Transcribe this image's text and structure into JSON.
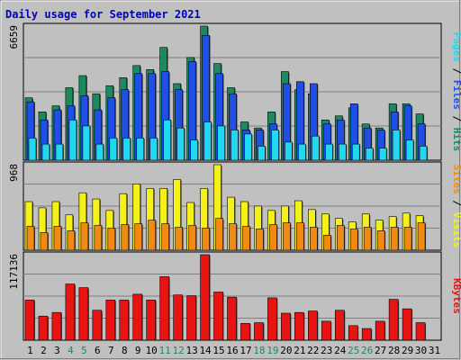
{
  "chart_data": {
    "type": "bar",
    "title": "Daily usage for September 2021",
    "colors": {
      "background": "#c0c0c0",
      "panel": "#c0c0c0",
      "hits": "#1d8a5e",
      "files": "#1f4fe6",
      "pages": "#22d8f0",
      "visits": "#f4f01a",
      "sites": "#f08a14",
      "kbytes": "#e81414",
      "weekend_label": "#1d8a5e",
      "weekday_label": "#000000",
      "title": "#0000c0"
    },
    "days": [
      "1",
      "2",
      "3",
      "4",
      "5",
      "6",
      "7",
      "8",
      "9",
      "10",
      "11",
      "12",
      "13",
      "14",
      "15",
      "16",
      "17",
      "18",
      "19",
      "20",
      "21",
      "22",
      "23",
      "24",
      "25",
      "26",
      "27",
      "28",
      "29",
      "30",
      "31"
    ],
    "weekend_days": [
      "4",
      "5",
      "11",
      "12",
      "18",
      "19",
      "25",
      "26"
    ],
    "panels": [
      {
        "name": "hits-files-pages",
        "max_label": "6659",
        "ymax": 6659,
        "legend": [
          {
            "text": "Pages",
            "color": "#22d8f0"
          },
          {
            "text": " / ",
            "color": "#000000"
          },
          {
            "text": "Files",
            "color": "#1f4fe6"
          },
          {
            "text": " / ",
            "color": "#000000"
          },
          {
            "text": "Hits",
            "color": "#1d8a5e"
          }
        ],
        "series": [
          {
            "name": "Hits",
            "color": "#1d8a5e",
            "values": [
              3100,
              2400,
              2700,
              3600,
              4200,
              3300,
              3700,
              4100,
              4700,
              4500,
              5600,
              3800,
              5100,
              6659,
              4800,
              3600,
              1900,
              1600,
              2400,
              4400,
              3500,
              3300,
              2000,
              2200,
              2600,
              1800,
              1600,
              2800,
              2800,
              2300,
              0
            ]
          },
          {
            "name": "Files",
            "color": "#1f4fe6",
            "values": [
              2900,
              2000,
              2500,
              2700,
              3200,
              2500,
              3100,
              3500,
              4300,
              4300,
              4400,
              3500,
              4900,
              6200,
              4300,
              3300,
              1500,
              1500,
              1800,
              3800,
              3900,
              3800,
              1800,
              2000,
              2800,
              1600,
              1500,
              2400,
              2700,
              1800,
              0
            ]
          },
          {
            "name": "Pages",
            "color": "#22d8f0",
            "values": [
              1100,
              800,
              800,
              2000,
              1700,
              800,
              1100,
              1100,
              1100,
              1100,
              2000,
              1600,
              1000,
              1900,
              1700,
              1500,
              1300,
              700,
              1500,
              900,
              800,
              1200,
              800,
              800,
              800,
              600,
              600,
              1500,
              1000,
              700,
              0
            ]
          }
        ]
      },
      {
        "name": "visits-sites",
        "max_label": "968",
        "ymax": 968,
        "legend": [
          {
            "text": "Sites",
            "color": "#f08a14"
          },
          {
            "text": " / ",
            "color": "#000000"
          },
          {
            "text": "Visits",
            "color": "#f4f01a"
          }
        ],
        "series": [
          {
            "name": "Visits",
            "color": "#f4f01a",
            "values": [
              550,
              480,
              550,
              400,
              650,
              580,
              450,
              640,
              750,
              700,
              700,
              800,
              540,
              700,
              968,
              600,
              550,
              500,
              450,
              500,
              560,
              460,
              410,
              360,
              320,
              410,
              340,
              380,
              420,
              390,
              0
            ]
          },
          {
            "name": "Sites",
            "color": "#f08a14",
            "values": [
              270,
              200,
              270,
              220,
              310,
              280,
              250,
              290,
              300,
              340,
              300,
              260,
              280,
              250,
              360,
              300,
              270,
              240,
              290,
              310,
              310,
              260,
              170,
              280,
              240,
              260,
              220,
              260,
              260,
              310,
              0
            ]
          }
        ]
      },
      {
        "name": "kbytes",
        "max_label": "117136",
        "ymax": 117136,
        "legend": [
          {
            "text": "KBytes",
            "color": "#e81414"
          }
        ],
        "series": [
          {
            "name": "KBytes",
            "color": "#e81414",
            "values": [
              55000,
              33000,
              38000,
              77000,
              72000,
              41000,
              55000,
              55000,
              63000,
              55000,
              87000,
              62000,
              61000,
              117136,
              66000,
              59000,
              23000,
              24000,
              58000,
              37000,
              38000,
              40000,
              26000,
              41000,
              20000,
              16000,
              26000,
              56000,
              43000,
              24000,
              0
            ]
          }
        ]
      }
    ]
  }
}
